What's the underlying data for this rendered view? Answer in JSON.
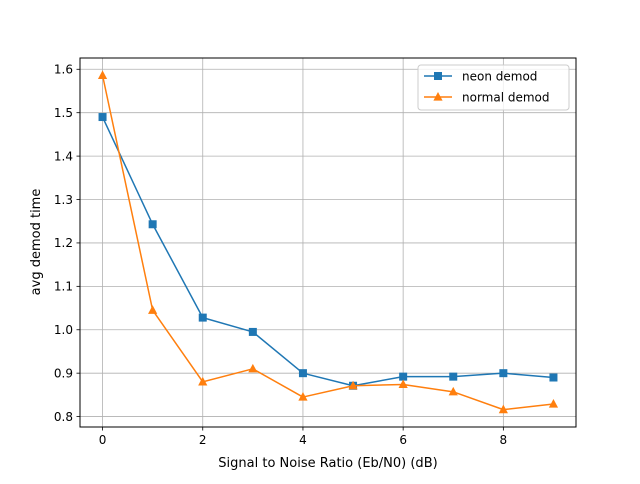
{
  "chart_data": {
    "type": "line",
    "title": "",
    "xlabel": "Signal to Noise Ratio (Eb/N0) (dB)",
    "ylabel": "avg demod time",
    "xlim": [
      -0.45,
      9.45
    ],
    "ylim": [
      0.776,
      1.626
    ],
    "x_ticks": [
      0,
      2,
      4,
      6,
      8
    ],
    "y_ticks": [
      0.8,
      0.9,
      1.0,
      1.1,
      1.2,
      1.3,
      1.4,
      1.5,
      1.6
    ],
    "x_tick_labels": [
      "0",
      "2",
      "4",
      "6",
      "8"
    ],
    "y_tick_labels": [
      "0.8",
      "0.9",
      "1.0",
      "1.1",
      "1.2",
      "1.3",
      "1.4",
      "1.5",
      "1.6"
    ],
    "grid": true,
    "legend_position": "top-right",
    "x": [
      0,
      1,
      2,
      3,
      4,
      5,
      6,
      7,
      8,
      9
    ],
    "series": [
      {
        "name": "neon demod",
        "color": "#1f77b4",
        "marker": "square",
        "values": [
          1.49,
          1.243,
          1.028,
          0.995,
          0.9,
          0.871,
          0.892,
          0.892,
          0.9,
          0.89
        ]
      },
      {
        "name": "normal demod",
        "color": "#ff7f0e",
        "marker": "triangle",
        "values": [
          1.586,
          1.045,
          0.88,
          0.91,
          0.845,
          0.871,
          0.874,
          0.857,
          0.816,
          0.829
        ]
      }
    ]
  }
}
